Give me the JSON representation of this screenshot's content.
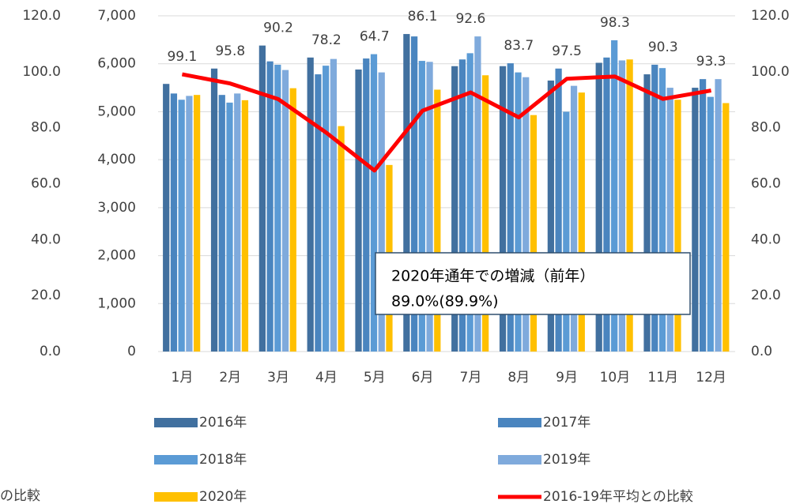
{
  "chart_data": {
    "type": "bar",
    "categories": [
      "1月",
      "2月",
      "3月",
      "4月",
      "5月",
      "6月",
      "7月",
      "8月",
      "9月",
      "10月",
      "11月",
      "12月"
    ],
    "series": [
      {
        "name": "2016年",
        "color": "#41709f",
        "values": [
          5580,
          5900,
          6380,
          6130,
          5880,
          6620,
          5950,
          5950,
          5650,
          6020,
          5780,
          5500
        ]
      },
      {
        "name": "2017年",
        "color": "#4a85bf",
        "values": [
          5380,
          5350,
          6050,
          5780,
          6110,
          6570,
          6090,
          6010,
          5900,
          6130,
          5980,
          5680
        ]
      },
      {
        "name": "2018年",
        "color": "#5b9bd5",
        "values": [
          5250,
          5190,
          5980,
          5960,
          6200,
          6060,
          6220,
          5820,
          5000,
          6490,
          5910,
          5310
        ]
      },
      {
        "name": "2019年",
        "color": "#7faadc",
        "values": [
          5330,
          5380,
          5870,
          6100,
          5820,
          6040,
          6570,
          5720,
          5540,
          6070,
          5500,
          5680
        ]
      },
      {
        "name": "2020年",
        "color": "#ffc000",
        "values": [
          5350,
          5240,
          5490,
          4700,
          3890,
          5460,
          5760,
          4930,
          5400,
          6090,
          5250,
          5180
        ]
      },
      {
        "name": "2016-19年平均との比較",
        "color": "#ff0000",
        "type": "line",
        "axis": "y2",
        "values": [
          99.1,
          95.8,
          90.2,
          78.2,
          64.7,
          86.1,
          92.6,
          83.7,
          97.5,
          98.3,
          90.3,
          93.3
        ]
      }
    ],
    "ylim": [
      0,
      7000
    ],
    "yticks": [
      0,
      {
        "value": 1000,
        "label": "1,000"
      },
      {
        "value": 2000,
        "label": "2,000"
      },
      {
        "value": 3000,
        "label": "3,000"
      },
      {
        "value": 4000,
        "label": "4,000"
      },
      {
        "value": 5000,
        "label": "5,000"
      },
      {
        "value": 6000,
        "label": "6,000"
      },
      {
        "value": 7000,
        "label": "7,000"
      }
    ],
    "y2lim": [
      0,
      120
    ],
    "y2ticks": [
      {
        "value": 0,
        "label": "0.0"
      },
      {
        "value": 20,
        "label": "20.0"
      },
      {
        "value": 40,
        "label": "40.0"
      },
      {
        "value": 60,
        "label": "60.0"
      },
      {
        "value": 80,
        "label": "80.0"
      },
      {
        "value": 100,
        "label": "100.0"
      },
      {
        "value": 120,
        "label": "120.0"
      }
    ],
    "grid": true,
    "annotations": [
      "2020年通年での増減（前年）",
      "89.0%(89.9%)"
    ],
    "fragment": "の比較"
  }
}
